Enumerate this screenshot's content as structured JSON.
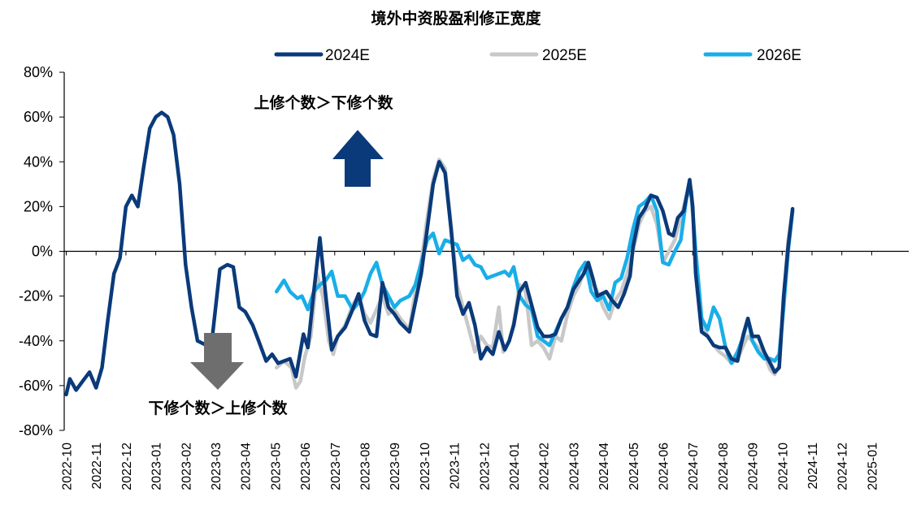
{
  "chart_data": {
    "type": "line",
    "title": "境外中资股盈利修正宽度",
    "xlabel": "",
    "ylabel": "",
    "ylim": [
      -80,
      80
    ],
    "yticks": [
      "80%",
      "60%",
      "40%",
      "20%",
      "0%",
      "-20%",
      "-40%",
      "-60%",
      "-80%"
    ],
    "xticks": [
      "2022-10",
      "2022-11",
      "2022-12",
      "2023-01",
      "2023-02",
      "2023-03",
      "2023-04",
      "2023-05",
      "2023-06",
      "2023-07",
      "2023-08",
      "2023-09",
      "2023-10",
      "2023-11",
      "2023-12",
      "2024-01",
      "2024-02",
      "2024-03",
      "2024-04",
      "2024-05",
      "2024-06",
      "2024-07",
      "2024-08",
      "2024-09",
      "2024-10",
      "2024-11",
      "2024-12",
      "2025-01"
    ],
    "legend_position": "top",
    "grid": false,
    "annotations": [
      {
        "text": "上修个数＞下修个数",
        "direction": "up",
        "color": "#0a3a7a"
      },
      {
        "text": "下修个数＞上修个数",
        "direction": "down",
        "color": "#6e6e6e"
      }
    ],
    "series": [
      {
        "name": "2024E",
        "color": "#0a3a7a",
        "points": [
          [
            0,
            -64
          ],
          [
            0.12,
            -57
          ],
          [
            0.33,
            -62
          ],
          [
            0.55,
            -58
          ],
          [
            0.78,
            -54
          ],
          [
            1.0,
            -61
          ],
          [
            1.2,
            -52
          ],
          [
            1.4,
            -30
          ],
          [
            1.6,
            -10
          ],
          [
            1.8,
            -3
          ],
          [
            2.0,
            20
          ],
          [
            2.2,
            25
          ],
          [
            2.4,
            20
          ],
          [
            2.6,
            38
          ],
          [
            2.8,
            55
          ],
          [
            3.0,
            60
          ],
          [
            3.2,
            62
          ],
          [
            3.4,
            60
          ],
          [
            3.6,
            52
          ],
          [
            3.8,
            30
          ],
          [
            4.0,
            -6
          ],
          [
            4.2,
            -25
          ],
          [
            4.4,
            -40
          ],
          [
            4.7,
            -42
          ],
          [
            4.9,
            -38
          ],
          [
            5.15,
            -8
          ],
          [
            5.4,
            -6
          ],
          [
            5.6,
            -7
          ],
          [
            5.8,
            -25
          ],
          [
            6.0,
            -27
          ],
          [
            6.25,
            -33
          ],
          [
            6.45,
            -40
          ],
          [
            6.7,
            -49
          ],
          [
            6.9,
            -46
          ],
          [
            7.1,
            -50
          ],
          [
            7.3,
            -49
          ],
          [
            7.5,
            -48
          ],
          [
            7.7,
            -56
          ],
          [
            7.95,
            -37
          ],
          [
            8.1,
            -43
          ],
          [
            8.3,
            -18
          ],
          [
            8.5,
            6
          ],
          [
            8.7,
            -20
          ],
          [
            8.9,
            -44
          ],
          [
            9.1,
            -38
          ],
          [
            9.35,
            -34
          ],
          [
            9.6,
            -26
          ],
          [
            9.8,
            -19
          ],
          [
            10.0,
            -31
          ],
          [
            10.2,
            -37
          ],
          [
            10.4,
            -38
          ],
          [
            10.6,
            -14
          ],
          [
            10.8,
            -25
          ],
          [
            11.0,
            -28
          ],
          [
            11.2,
            -32
          ],
          [
            11.5,
            -36
          ],
          [
            11.7,
            -23
          ],
          [
            11.9,
            -10
          ],
          [
            12.1,
            10
          ],
          [
            12.3,
            30
          ],
          [
            12.5,
            40
          ],
          [
            12.7,
            35
          ],
          [
            12.9,
            10
          ],
          [
            13.1,
            -20
          ],
          [
            13.3,
            -28
          ],
          [
            13.5,
            -23
          ],
          [
            13.7,
            -33
          ],
          [
            13.9,
            -48
          ],
          [
            14.1,
            -43
          ],
          [
            14.3,
            -46
          ],
          [
            14.5,
            -36
          ],
          [
            14.7,
            -44
          ],
          [
            14.85,
            -40
          ],
          [
            15.0,
            -33
          ],
          [
            15.2,
            -18
          ],
          [
            15.4,
            -14
          ],
          [
            15.6,
            -24
          ],
          [
            15.8,
            -34
          ],
          [
            16.0,
            -38
          ],
          [
            16.2,
            -38
          ],
          [
            16.4,
            -37
          ],
          [
            16.6,
            -30
          ],
          [
            16.8,
            -25
          ],
          [
            17.0,
            -17
          ],
          [
            17.2,
            -13
          ],
          [
            17.35,
            -10
          ],
          [
            17.5,
            -5
          ],
          [
            17.65,
            -12
          ],
          [
            17.8,
            -20
          ],
          [
            17.95,
            -19
          ],
          [
            18.1,
            -18
          ],
          [
            18.3,
            -22
          ],
          [
            18.5,
            -25
          ],
          [
            18.7,
            -19
          ],
          [
            18.9,
            -11
          ],
          [
            19.0,
            2
          ],
          [
            19.2,
            15
          ],
          [
            19.4,
            19
          ],
          [
            19.6,
            25
          ],
          [
            19.8,
            24
          ],
          [
            20.0,
            18
          ],
          [
            20.2,
            8
          ],
          [
            20.35,
            7
          ],
          [
            20.5,
            15
          ],
          [
            20.7,
            18
          ],
          [
            20.9,
            32
          ],
          [
            21.0,
            20
          ],
          [
            21.1,
            -10
          ],
          [
            21.3,
            -36
          ],
          [
            21.5,
            -38
          ],
          [
            21.7,
            -42
          ],
          [
            21.9,
            -43
          ],
          [
            22.1,
            -43
          ],
          [
            22.3,
            -48
          ],
          [
            22.5,
            -49
          ],
          [
            22.7,
            -37
          ],
          [
            22.85,
            -30
          ],
          [
            23.0,
            -38
          ],
          [
            23.2,
            -38
          ],
          [
            23.4,
            -45
          ],
          [
            23.6,
            -50
          ],
          [
            23.75,
            -54
          ],
          [
            23.9,
            -52
          ],
          [
            24.05,
            -20
          ],
          [
            24.2,
            2
          ],
          [
            24.35,
            19
          ]
        ]
      },
      {
        "name": "2025E",
        "color": "#c8c8c8",
        "points": [
          [
            7.05,
            -52
          ],
          [
            7.3,
            -49
          ],
          [
            7.55,
            -52
          ],
          [
            7.7,
            -61
          ],
          [
            7.85,
            -58
          ],
          [
            8.0,
            -47
          ],
          [
            8.2,
            -38
          ],
          [
            8.4,
            -10
          ],
          [
            8.6,
            -20
          ],
          [
            8.8,
            -40
          ],
          [
            8.95,
            -46
          ],
          [
            9.1,
            -38
          ],
          [
            9.35,
            -33
          ],
          [
            9.6,
            -24
          ],
          [
            9.8,
            -20
          ],
          [
            10.0,
            -28
          ],
          [
            10.2,
            -32
          ],
          [
            10.4,
            -26
          ],
          [
            10.6,
            -20
          ],
          [
            10.8,
            -28
          ],
          [
            11.0,
            -26
          ],
          [
            11.2,
            -30
          ],
          [
            11.5,
            -35
          ],
          [
            11.7,
            -18
          ],
          [
            11.9,
            -5
          ],
          [
            12.1,
            15
          ],
          [
            12.3,
            32
          ],
          [
            12.5,
            41
          ],
          [
            12.7,
            37
          ],
          [
            12.9,
            12
          ],
          [
            13.1,
            -15
          ],
          [
            13.3,
            -25
          ],
          [
            13.5,
            -35
          ],
          [
            13.7,
            -45
          ],
          [
            13.9,
            -38
          ],
          [
            14.1,
            -42
          ],
          [
            14.3,
            -43
          ],
          [
            14.5,
            -25
          ],
          [
            14.65,
            -45
          ],
          [
            14.85,
            -40
          ],
          [
            15.0,
            -32
          ],
          [
            15.2,
            -15
          ],
          [
            15.4,
            -18
          ],
          [
            15.6,
            -42
          ],
          [
            15.8,
            -40
          ],
          [
            16.0,
            -43
          ],
          [
            16.2,
            -48
          ],
          [
            16.4,
            -38
          ],
          [
            16.6,
            -40
          ],
          [
            16.8,
            -28
          ],
          [
            17.0,
            -20
          ],
          [
            17.2,
            -15
          ],
          [
            17.4,
            -7
          ],
          [
            17.6,
            -13
          ],
          [
            17.8,
            -18
          ],
          [
            18.0,
            -25
          ],
          [
            18.2,
            -30
          ],
          [
            18.4,
            -22
          ],
          [
            18.6,
            -18
          ],
          [
            18.8,
            -10
          ],
          [
            19.0,
            0
          ],
          [
            19.2,
            12
          ],
          [
            19.4,
            18
          ],
          [
            19.6,
            20
          ],
          [
            19.8,
            12
          ],
          [
            20.0,
            -5
          ],
          [
            20.2,
            0
          ],
          [
            20.4,
            5
          ],
          [
            20.6,
            15
          ],
          [
            20.8,
            25
          ],
          [
            20.95,
            25
          ],
          [
            21.1,
            0
          ],
          [
            21.3,
            -30
          ],
          [
            21.5,
            -38
          ],
          [
            21.7,
            -42
          ],
          [
            21.9,
            -45
          ],
          [
            22.1,
            -47
          ],
          [
            22.3,
            -50
          ],
          [
            22.5,
            -48
          ],
          [
            22.7,
            -42
          ],
          [
            22.85,
            -38
          ],
          [
            23.0,
            -40
          ],
          [
            23.2,
            -43
          ],
          [
            23.4,
            -46
          ],
          [
            23.6,
            -53
          ],
          [
            23.75,
            -55
          ],
          [
            23.9,
            -51
          ],
          [
            24.05,
            -22
          ],
          [
            24.2,
            5
          ],
          [
            24.35,
            18
          ]
        ]
      },
      {
        "name": "2026E",
        "color": "#19aee8",
        "points": [
          [
            7.05,
            -18
          ],
          [
            7.3,
            -13
          ],
          [
            7.5,
            -18
          ],
          [
            7.75,
            -21
          ],
          [
            7.9,
            -20
          ],
          [
            8.1,
            -26
          ],
          [
            8.3,
            -18
          ],
          [
            8.5,
            -15
          ],
          [
            8.7,
            -13
          ],
          [
            8.9,
            -9
          ],
          [
            9.1,
            -20
          ],
          [
            9.35,
            -20
          ],
          [
            9.6,
            -26
          ],
          [
            9.8,
            -23
          ],
          [
            10.0,
            -18
          ],
          [
            10.2,
            -10
          ],
          [
            10.4,
            -5
          ],
          [
            10.6,
            -15
          ],
          [
            10.8,
            -20
          ],
          [
            11.0,
            -25
          ],
          [
            11.2,
            -22
          ],
          [
            11.5,
            -20
          ],
          [
            11.7,
            -15
          ],
          [
            11.9,
            -5
          ],
          [
            12.1,
            5
          ],
          [
            12.3,
            8
          ],
          [
            12.5,
            -1
          ],
          [
            12.7,
            5
          ],
          [
            12.9,
            4
          ],
          [
            13.1,
            3
          ],
          [
            13.3,
            -4
          ],
          [
            13.5,
            -2
          ],
          [
            13.7,
            -6
          ],
          [
            13.9,
            -7
          ],
          [
            14.1,
            -12
          ],
          [
            14.3,
            -11
          ],
          [
            14.5,
            -10
          ],
          [
            14.7,
            -9
          ],
          [
            14.85,
            -11
          ],
          [
            15.0,
            -7
          ],
          [
            15.2,
            -20
          ],
          [
            15.4,
            -24
          ],
          [
            15.6,
            -26
          ],
          [
            15.8,
            -38
          ],
          [
            16.0,
            -40
          ],
          [
            16.2,
            -42
          ],
          [
            16.4,
            -36
          ],
          [
            16.6,
            -30
          ],
          [
            16.8,
            -25
          ],
          [
            17.0,
            -16
          ],
          [
            17.2,
            -9
          ],
          [
            17.4,
            -5
          ],
          [
            17.6,
            -18
          ],
          [
            17.8,
            -22
          ],
          [
            18.0,
            -20
          ],
          [
            18.2,
            -26
          ],
          [
            18.4,
            -14
          ],
          [
            18.6,
            -12
          ],
          [
            18.8,
            -3
          ],
          [
            19.0,
            10
          ],
          [
            19.2,
            20
          ],
          [
            19.4,
            22
          ],
          [
            19.6,
            25
          ],
          [
            19.8,
            18
          ],
          [
            20.0,
            -5
          ],
          [
            20.2,
            -6
          ],
          [
            20.4,
            0
          ],
          [
            20.6,
            5
          ],
          [
            20.8,
            25
          ],
          [
            20.95,
            27
          ],
          [
            21.1,
            0
          ],
          [
            21.3,
            -30
          ],
          [
            21.5,
            -35
          ],
          [
            21.7,
            -25
          ],
          [
            21.9,
            -30
          ],
          [
            22.1,
            -43
          ],
          [
            22.3,
            -50
          ],
          [
            22.5,
            -45
          ],
          [
            22.7,
            -38
          ],
          [
            22.85,
            -30
          ],
          [
            23.0,
            -40
          ],
          [
            23.2,
            -45
          ],
          [
            23.4,
            -48
          ],
          [
            23.6,
            -48
          ],
          [
            23.75,
            -49
          ],
          [
            23.9,
            -46
          ],
          [
            24.05,
            -25
          ],
          [
            24.2,
            0
          ],
          [
            24.35,
            18
          ]
        ]
      }
    ]
  }
}
